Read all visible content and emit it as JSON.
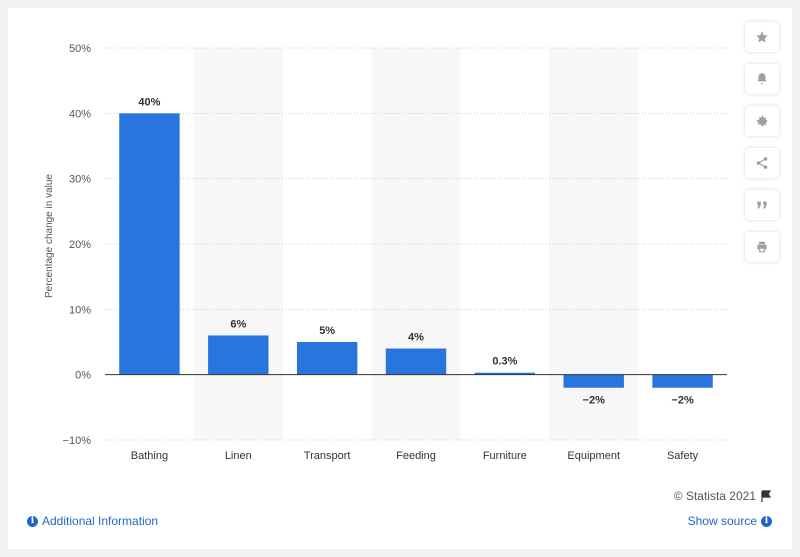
{
  "chart_data": {
    "type": "bar",
    "categories": [
      "Bathing",
      "Linen",
      "Transport",
      "Feeding",
      "Furniture",
      "Equipment",
      "Safety"
    ],
    "values": [
      40,
      6,
      5,
      4,
      0.3,
      -2,
      -2
    ],
    "value_labels": [
      "40%",
      "6%",
      "5%",
      "4%",
      "0.3%",
      "−2%",
      "−2%"
    ],
    "ylabel": "Percentage change in value",
    "ylim": [
      -10,
      50
    ],
    "yticks": [
      -10,
      0,
      10,
      20,
      30,
      40,
      50
    ],
    "ytick_labels": [
      "−10%",
      "0%",
      "10%",
      "20%",
      "30%",
      "40%",
      "50%"
    ],
    "bar_color": "#2876dd",
    "grid": true,
    "alternate_band_color": "#f7f7f7"
  },
  "toolbar": {
    "icons": [
      "star-icon",
      "bell-icon",
      "gear-icon",
      "share-icon",
      "quote-icon",
      "print-icon"
    ]
  },
  "footer": {
    "credit": "© Statista 2021",
    "additional_info": "Additional Information",
    "show_source": "Show source"
  }
}
